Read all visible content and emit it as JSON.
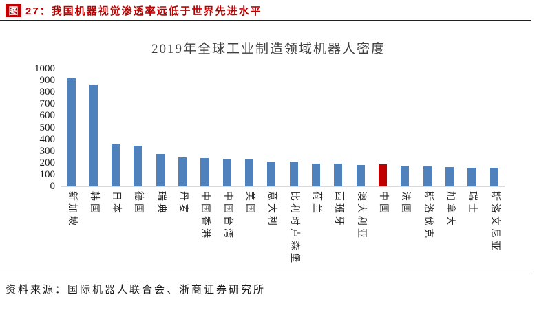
{
  "figure_header": {
    "badge": "图",
    "caption": "27：我国机器视觉渗透率远低于世界先进水平"
  },
  "chart_data": {
    "type": "bar",
    "title": "2019年全球工业制造领域机器人密度",
    "categories": [
      "新加坡",
      "韩国",
      "日本",
      "德国",
      "瑞典",
      "丹麦",
      "中国香港",
      "中国台湾",
      "美国",
      "意大利",
      "比利时卢森堡",
      "荷兰",
      "西班牙",
      "澳大利亚",
      "中国",
      "法国",
      "斯洛伐克",
      "加拿大",
      "瑞士",
      "斯洛文尼亚"
    ],
    "values": [
      918,
      868,
      364,
      346,
      274,
      243,
      242,
      234,
      228,
      212,
      211,
      194,
      191,
      182,
      187,
      177,
      169,
      165,
      157,
      156
    ],
    "highlight_category": "中国",
    "highlight_index": 14,
    "bar_color": "#4F81BD",
    "highlight_color": "#C00000",
    "xlabel": "",
    "ylabel": "",
    "ylim": [
      0,
      1000
    ],
    "yticks": [
      0,
      100,
      200,
      300,
      400,
      500,
      600,
      700,
      800,
      900,
      1000
    ],
    "grid": false,
    "legend": false,
    "axis_line_color": "#D9D9D9"
  },
  "footer": {
    "source": "资料来源：国际机器人联合会、浙商证券研究所"
  },
  "colors": {
    "accent_red": "#C00000",
    "bar_blue": "#4F81BD",
    "axis_gray": "#D9D9D9"
  }
}
